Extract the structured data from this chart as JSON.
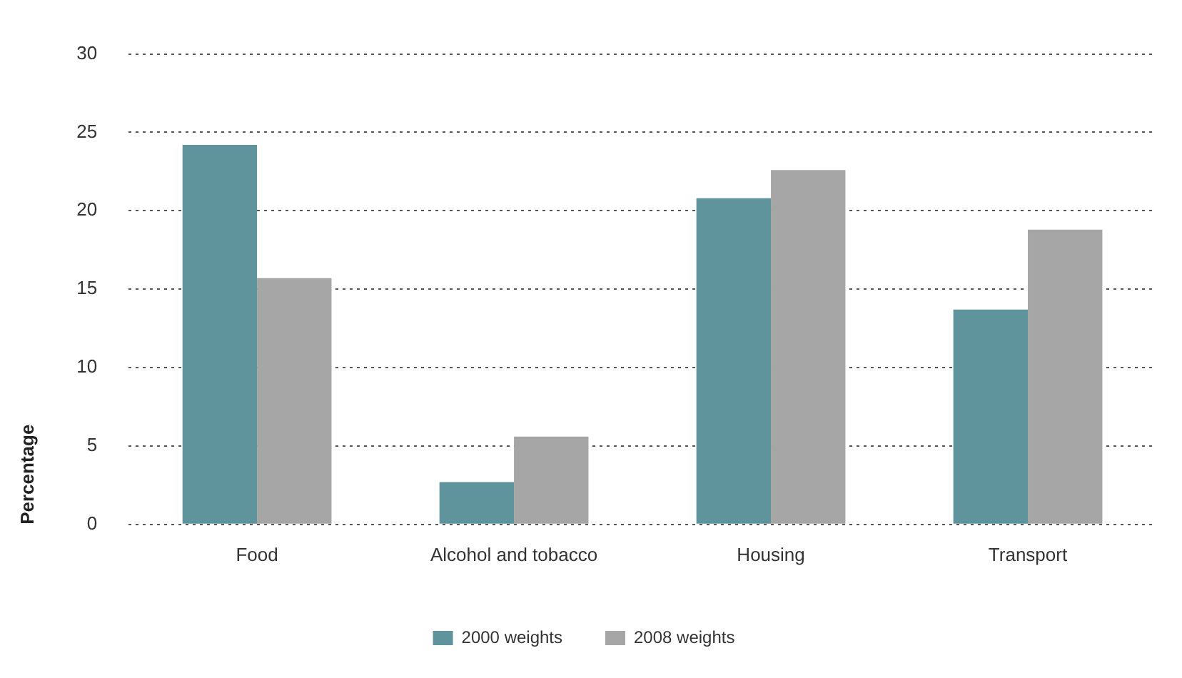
{
  "chart_data": {
    "type": "bar",
    "ylabel": "Percentage",
    "categories": [
      "Food",
      "Alcohol and tobacco",
      "Housing",
      "Transport"
    ],
    "series": [
      {
        "name": "2000 weights",
        "color": "#5f949c",
        "values": [
          24.2,
          2.7,
          20.8,
          13.7
        ]
      },
      {
        "name": "2008 weights",
        "color": "#a6a6a6",
        "values": [
          15.7,
          5.6,
          22.6,
          18.8
        ]
      }
    ],
    "ylim": [
      0,
      30
    ],
    "yticks": [
      0,
      5,
      10,
      15,
      20,
      25,
      30
    ],
    "grid": "y",
    "legend": "bottom"
  }
}
